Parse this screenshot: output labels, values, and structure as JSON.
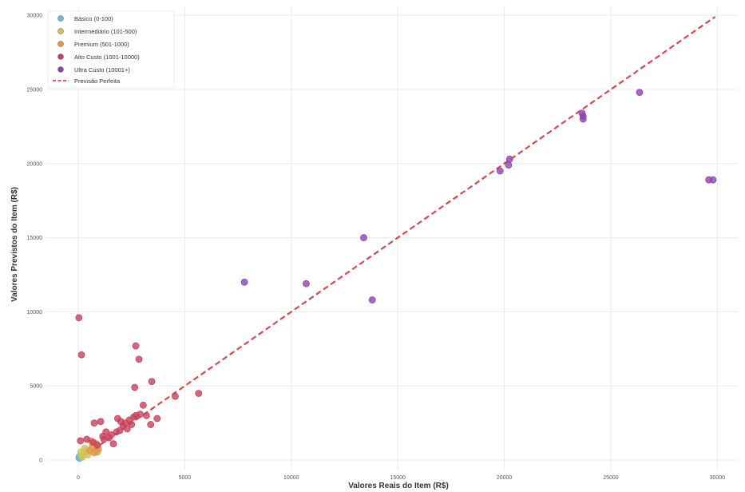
{
  "chart_data": {
    "type": "scatter",
    "title": "",
    "xlabel": "Valores Reais do Item (R$)",
    "ylabel": "Valores Previstos do Item (R$)",
    "xlim": [
      -1500,
      31000
    ],
    "ylim": [
      -700,
      30600
    ],
    "xticks": [
      0,
      5000,
      10000,
      15000,
      20000,
      25000,
      30000
    ],
    "yticks": [
      0,
      5000,
      10000,
      15000,
      20000,
      25000,
      30000
    ],
    "grid": true,
    "legend_position": "top-left",
    "series": [
      {
        "name": "Básico (0-100)",
        "color": "#6fb8dc",
        "points": [
          [
            30,
            150
          ],
          [
            50,
            250
          ],
          [
            70,
            120
          ]
        ]
      },
      {
        "name": "Intermediário (101-500)",
        "color": "#cfc25a",
        "points": [
          [
            150,
            300
          ],
          [
            250,
            450
          ],
          [
            350,
            600
          ],
          [
            200,
            200
          ],
          [
            450,
            350
          ],
          [
            300,
            800
          ],
          [
            120,
            550
          ]
        ]
      },
      {
        "name": "Premium (501-1000)",
        "color": "#e1964a",
        "points": [
          [
            550,
            650
          ],
          [
            650,
            900
          ],
          [
            750,
            500
          ],
          [
            850,
            1100
          ],
          [
            950,
            750
          ],
          [
            600,
            1300
          ],
          [
            900,
            550
          ]
        ]
      },
      {
        "name": "Alto Custo (1001-10000)",
        "color": "#c8425d",
        "points": [
          [
            30,
            9600
          ],
          [
            150,
            7100
          ],
          [
            2700,
            7700
          ],
          [
            2850,
            6800
          ],
          [
            2650,
            4900
          ],
          [
            3450,
            5300
          ],
          [
            4550,
            4300
          ],
          [
            5650,
            4500
          ],
          [
            3050,
            3700
          ],
          [
            1050,
            2600
          ],
          [
            750,
            2500
          ],
          [
            1850,
            2800
          ],
          [
            3700,
            2800
          ],
          [
            3400,
            2400
          ],
          [
            1150,
            1600
          ],
          [
            1450,
            1500
          ],
          [
            1650,
            1100
          ],
          [
            1300,
            1900
          ],
          [
            2100,
            2300
          ],
          [
            2400,
            2700
          ],
          [
            2900,
            3100
          ],
          [
            1950,
            2000
          ],
          [
            1550,
            1700
          ],
          [
            2200,
            2500
          ],
          [
            2600,
            2900
          ],
          [
            3200,
            3000
          ],
          [
            400,
            1400
          ],
          [
            100,
            1300
          ],
          [
            700,
            1200
          ],
          [
            900,
            1000
          ],
          [
            1200,
            1400
          ],
          [
            1800,
            1900
          ],
          [
            2000,
            2600
          ],
          [
            2300,
            2100
          ],
          [
            2500,
            2400
          ],
          [
            2700,
            3000
          ]
        ]
      },
      {
        "name": "Ultra Custo (10001+)",
        "color": "#8e44ad",
        "points": [
          [
            7800,
            12000
          ],
          [
            10700,
            11900
          ],
          [
            13400,
            15000
          ],
          [
            13800,
            10800
          ],
          [
            19800,
            19500
          ],
          [
            20200,
            19900
          ],
          [
            20250,
            20300
          ],
          [
            23700,
            23000
          ],
          [
            23700,
            23200
          ],
          [
            23650,
            23400
          ],
          [
            26350,
            24800
          ],
          [
            29600,
            18900
          ],
          [
            29800,
            18900
          ]
        ]
      }
    ],
    "reference_line": {
      "name": "Previsão Perfeita",
      "color": "#d62728",
      "from": [
        0,
        0
      ],
      "to": [
        29900,
        29900
      ]
    }
  }
}
